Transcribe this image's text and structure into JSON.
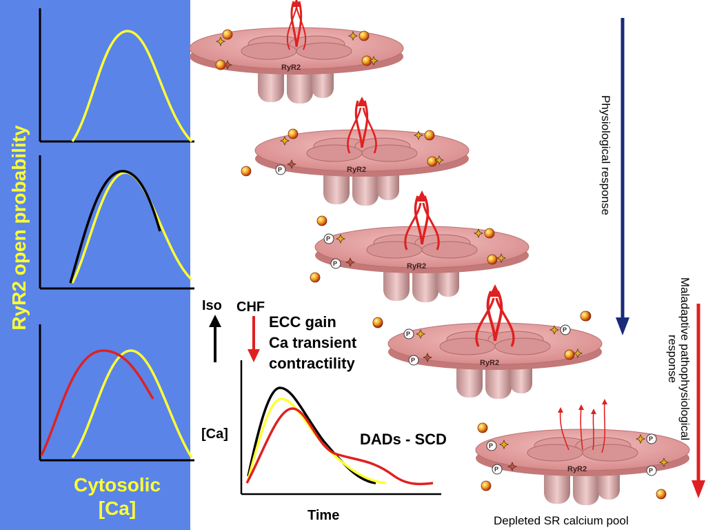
{
  "left_panel": {
    "y_axis_label": "RyR2 open probability",
    "x_axis_label_line1": "Cytosolic",
    "x_axis_label_line2": "[Ca]"
  },
  "receptor_label": "RyR2",
  "phospho_label": "P",
  "arrows": {
    "iso_label": "Iso",
    "chf_label": "CHF"
  },
  "effects": {
    "line1": "ECC gain",
    "line2": "Ca transient",
    "line3": "contractility"
  },
  "transient_chart": {
    "ylabel": "[Ca]",
    "xlabel": "Time"
  },
  "dads_label": "DADs - SCD",
  "physiological_label": "Physiological response",
  "maladaptive_label_line1": "Maladaptive pathophysiological",
  "maladaptive_label_line2": "response",
  "bottom_caption": "Depleted SR calcium pool",
  "colors": {
    "panel_bg": "#5b84e8",
    "label_yellow": "#ffff33",
    "curve_yellow": "#ffff33",
    "curve_black": "#000000",
    "curve_red": "#e02020",
    "arrow_red": "#e02020",
    "arrow_navy": "#1a2a7a",
    "disc": "#e8a0a0"
  }
}
